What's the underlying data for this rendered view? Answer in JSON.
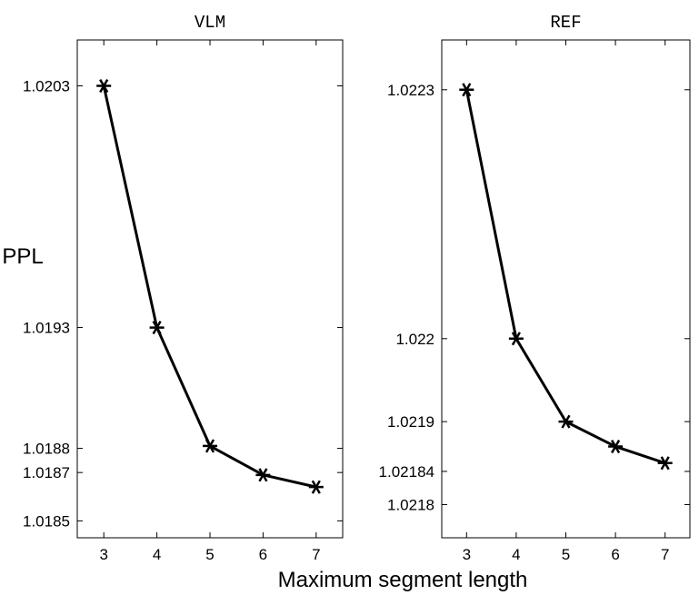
{
  "chart_data": [
    {
      "type": "line",
      "title": "VLM",
      "ylabel": "PPL",
      "x": [
        3,
        4,
        5,
        6,
        7
      ],
      "series": [
        {
          "values": [
            1.0203,
            1.0193,
            1.01881,
            1.01869,
            1.01864
          ]
        }
      ],
      "xticks": [
        "3",
        "4",
        "5",
        "6",
        "7"
      ],
      "yticks": [
        {
          "value": 1.0185,
          "label": "1.0185"
        },
        {
          "value": 1.0187,
          "label": "1.0187"
        },
        {
          "value": 1.0188,
          "label": "1.0188"
        },
        {
          "value": 1.0193,
          "label": "1.0193"
        },
        {
          "value": 1.0203,
          "label": "1.0203"
        }
      ],
      "xlim": [
        2.5,
        7.5
      ],
      "ylim": [
        1.01843,
        1.02049
      ],
      "marker": "asterisk",
      "grid": false,
      "color": "#000000"
    },
    {
      "type": "line",
      "title": "REF",
      "x": [
        3,
        4,
        5,
        6,
        7
      ],
      "series": [
        {
          "values": [
            1.0223,
            1.022,
            1.0219,
            1.02187,
            1.02185
          ]
        }
      ],
      "xticks": [
        "3",
        "4",
        "5",
        "6",
        "7"
      ],
      "yticks": [
        {
          "value": 1.0218,
          "label": "1.0218"
        },
        {
          "value": 1.02184,
          "label": "1.02184"
        },
        {
          "value": 1.0219,
          "label": "1.0219"
        },
        {
          "value": 1.022,
          "label": "1.022"
        },
        {
          "value": 1.0223,
          "label": "1.0223"
        }
      ],
      "xlim": [
        2.5,
        7.5
      ],
      "ylim": [
        1.02176,
        1.02236
      ],
      "marker": "asterisk",
      "grid": false,
      "color": "#000000"
    }
  ],
  "shared_xlabel": "Maximum segment length"
}
